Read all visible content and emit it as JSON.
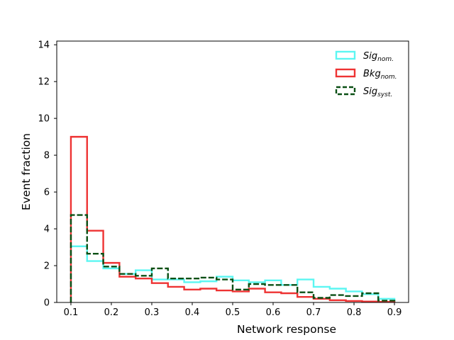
{
  "chart_data": {
    "type": "line",
    "style": "step histogram",
    "xlabel": "Network response",
    "ylabel": "Event fraction",
    "xlim": [
      0.065,
      0.935
    ],
    "ylim": [
      0,
      14.2
    ],
    "xticks": [
      "0.1",
      "0.2",
      "0.3",
      "0.4",
      "0.5",
      "0.6",
      "0.7",
      "0.8",
      "0.9"
    ],
    "yticks": [
      "0",
      "2",
      "4",
      "6",
      "8",
      "10",
      "12",
      "14"
    ],
    "bin_edges": [
      0.1,
      0.14,
      0.18,
      0.22,
      0.26,
      0.3,
      0.34,
      0.38,
      0.42,
      0.46,
      0.5,
      0.54,
      0.58,
      0.62,
      0.66,
      0.7,
      0.74,
      0.78,
      0.82,
      0.86,
      0.9
    ],
    "grid": false,
    "legend_position": "top-right",
    "series": [
      {
        "key": "sig_nom",
        "name_main": "Sig",
        "name_sub": "nom.",
        "color": "#5cf6f2",
        "dash": "solid",
        "values": [
          3.05,
          2.25,
          1.85,
          1.55,
          1.75,
          1.25,
          1.25,
          1.1,
          1.15,
          1.4,
          1.2,
          1.1,
          1.2,
          0.95,
          1.25,
          0.85,
          0.75,
          0.6,
          0.45,
          0.2
        ]
      },
      {
        "key": "bkg_nom",
        "name_main": "Bkg",
        "name_sub": "nom.",
        "color": "#ee3333",
        "dash": "solid",
        "values": [
          9.0,
          3.9,
          2.15,
          1.4,
          1.3,
          1.05,
          0.85,
          0.7,
          0.75,
          0.65,
          0.6,
          0.75,
          0.55,
          0.5,
          0.3,
          0.2,
          0.12,
          0.08,
          0.05,
          0.03
        ]
      },
      {
        "key": "sig_syst",
        "name_main": "Sig",
        "name_sub": "syst.",
        "color": "#0a4f14",
        "dash": "dashed",
        "values": [
          4.75,
          2.65,
          1.95,
          1.55,
          1.45,
          1.85,
          1.3,
          1.3,
          1.35,
          1.25,
          0.7,
          1.0,
          0.95,
          0.95,
          0.55,
          0.25,
          0.4,
          0.35,
          0.5,
          0.1
        ]
      }
    ]
  }
}
